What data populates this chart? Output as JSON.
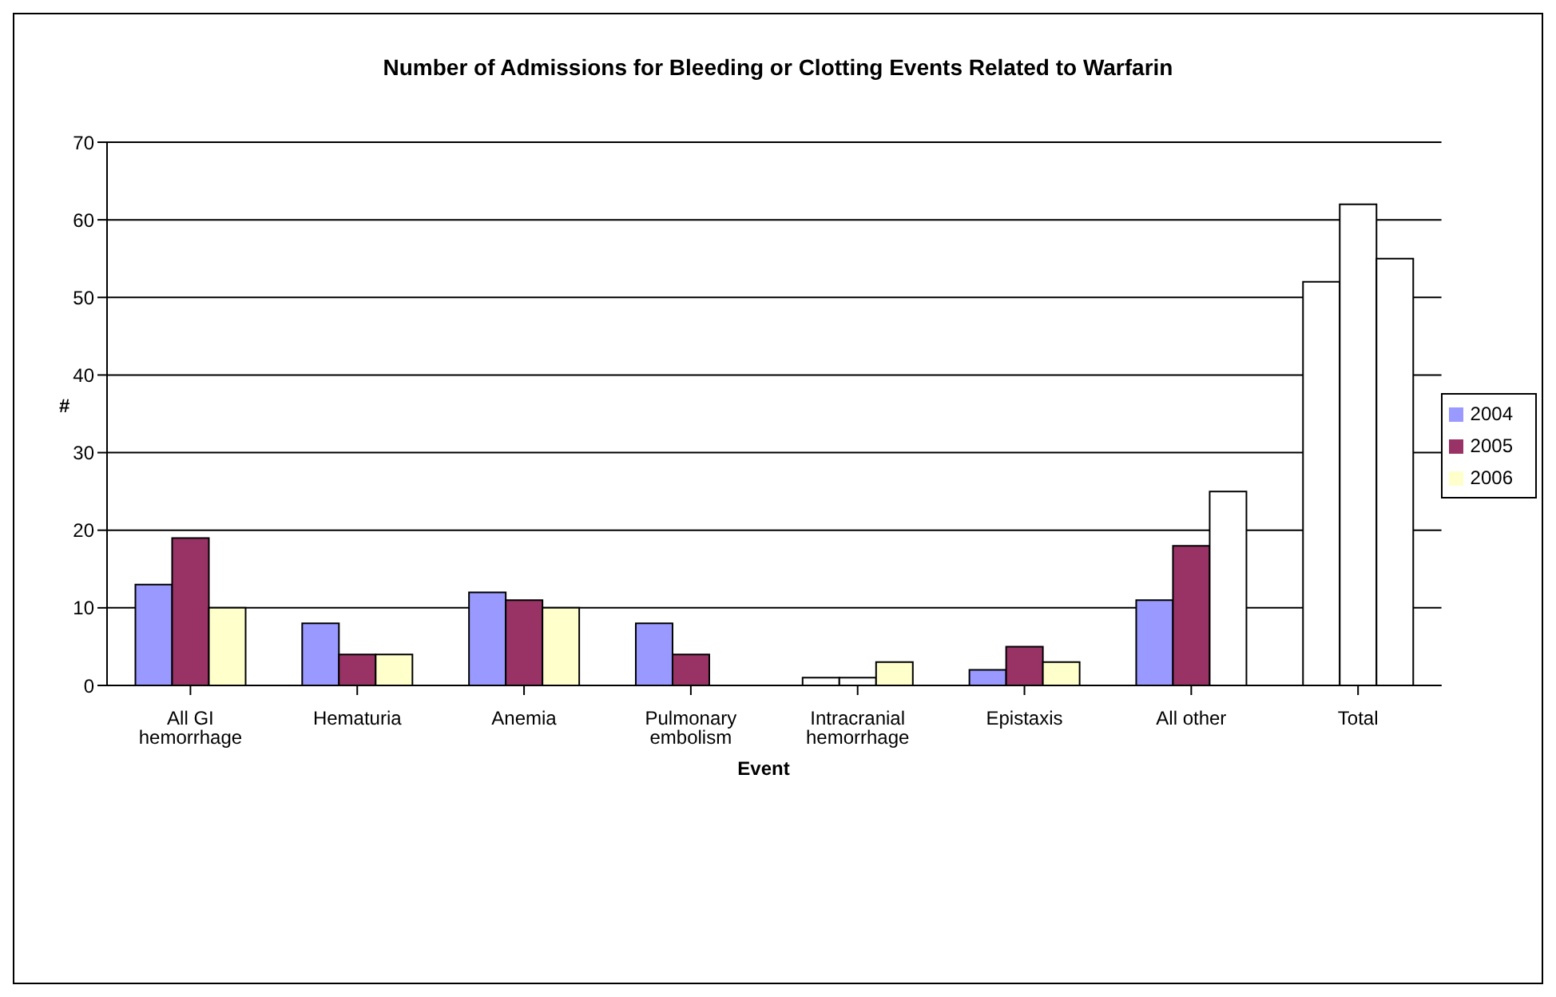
{
  "chart_data": {
    "type": "bar",
    "title": "Number of Admissions for Bleeding or Clotting Events Related to Warfarin",
    "xlabel": "Event",
    "ylabel": "#",
    "categories": [
      "All GI hemorrhage",
      "Hematuria",
      "Anemia",
      "Pulmonary embolism",
      "Intracranial hemorrhage",
      "Epistaxis",
      "All other",
      "Total"
    ],
    "series": [
      {
        "name": "2004",
        "color": "#9999ff",
        "colors": [
          "#9999ff",
          "#9999ff",
          "#9999ff",
          "#9999ff",
          "#ffffff",
          "#9999ff",
          "#9999ff",
          "#ffffff"
        ],
        "values": [
          13,
          8,
          12,
          8,
          1,
          2,
          11,
          52
        ]
      },
      {
        "name": "2005",
        "color": "#993366",
        "colors": [
          "#993366",
          "#993366",
          "#993366",
          "#993366",
          "#ffffff",
          "#993366",
          "#993366",
          "#ffffff"
        ],
        "values": [
          19,
          4,
          11,
          4,
          1,
          5,
          18,
          62
        ]
      },
      {
        "name": "2006",
        "color": "#ffffcc",
        "colors": [
          "#ffffcc",
          "#ffffcc",
          "#ffffcc",
          "#ffffcc",
          "#ffffcc",
          "#ffffcc",
          "#ffffff",
          "#ffffff"
        ],
        "values": [
          10,
          4,
          10,
          null,
          3,
          3,
          25,
          55
        ]
      }
    ],
    "ylim": [
      0,
      70
    ],
    "yticks": [
      0,
      10,
      20,
      30,
      40,
      50,
      60,
      70
    ],
    "grid": "y",
    "legend": "right"
  }
}
